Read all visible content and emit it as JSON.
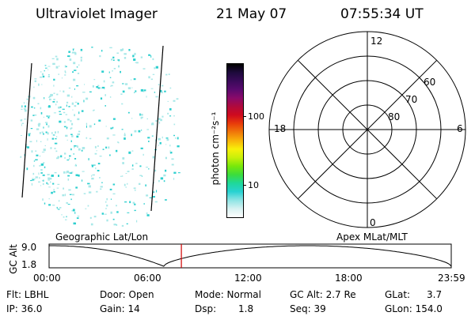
{
  "header": {
    "instrument": "Ultraviolet Imager",
    "date": "21 May 07",
    "time": "07:55:34 UT"
  },
  "colorbar": {
    "unit_label": "photon cm⁻²s⁻¹",
    "ticks": [
      {
        "value": 100,
        "label": "100"
      },
      {
        "value": 10,
        "label": "10"
      }
    ],
    "colors": [
      "#000000",
      "#1e0a3c",
      "#3a0a5a",
      "#5a0a6e",
      "#8a0a6a",
      "#b00a3c",
      "#d00a1e",
      "#e83c0a",
      "#f0780a",
      "#f8b40a",
      "#f8f00a",
      "#c8f00a",
      "#78e80a",
      "#3cdc3c",
      "#1ed89a",
      "#28d2d2",
      "#8ee4e4",
      "#d8f2f2",
      "#ffffff"
    ]
  },
  "polar": {
    "mlt_labels": {
      "top": "12",
      "left": "18",
      "right": "6",
      "bottom": "0"
    },
    "lat_labels": [
      "60",
      "70",
      "80"
    ]
  },
  "timeline": {
    "ylabel": "GC Alt",
    "ymax_label": "9.0",
    "ymin_label": "1.8",
    "left_caption": "Geographic Lat/Lon",
    "right_caption": "Apex MLat/MLT",
    "xticks": [
      "00:00",
      "06:00",
      "12:00",
      "18:00",
      "23:59"
    ],
    "current_time_fraction": 0.329
  },
  "info": {
    "flt": "Flt: LBHL",
    "ip": "IP: 36.0",
    "door": "Door: Open",
    "gain": "Gain: 14",
    "mode": "Mode: Normal",
    "dsp_label": "Dsp:",
    "dsp_value": "1.8",
    "gc_alt": "GC Alt: 2.7 Re",
    "seq": "Seq: 39",
    "glat_label": "GLat:",
    "glat_value": "3.7",
    "glon": "GLon: 154.0"
  },
  "colors": {
    "cyan": "#2ecfcf",
    "light_cyan": "#a8e8e8",
    "red_marker": "#d00000"
  }
}
